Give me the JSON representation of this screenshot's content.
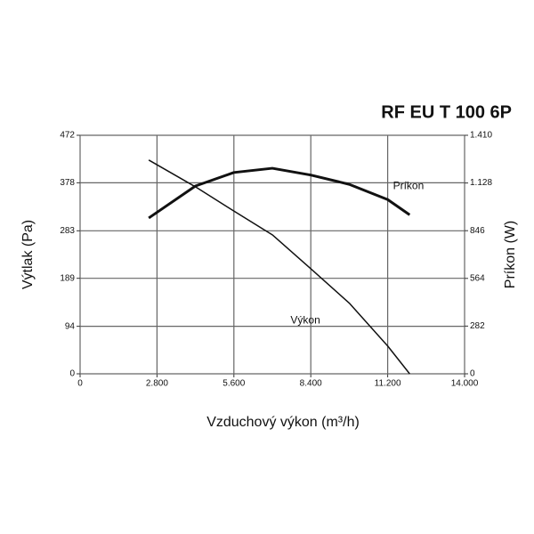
{
  "chart_data": {
    "type": "line",
    "title": "RF EU T 100 6P",
    "x_label": "Vzduchový výkon (m³/h)",
    "y_label": "Výtlak (Pa)",
    "y2_label": "Príkon (W)",
    "x": [
      2500,
      4200,
      5600,
      7000,
      8400,
      9800,
      11200,
      12000
    ],
    "series": [
      {
        "name": "Výkon",
        "color": "#111111",
        "values": [
          423,
          370,
          322,
          275,
          208,
          140,
          55,
          0
        ]
      },
      {
        "name": "Príkon",
        "color": "#111111",
        "axis": "y2",
        "values": [
          921,
          1110,
          1190,
          1215,
          1175,
          1120,
          1030,
          940
        ]
      }
    ],
    "xlim": [
      0,
      14000
    ],
    "xticks": [
      0,
      {
        "value": 2800,
        "label": "2.800"
      },
      {
        "value": 5600,
        "label": "5.600"
      },
      {
        "value": 8400,
        "label": "8.400"
      },
      {
        "value": 11200,
        "label": "11.200"
      },
      {
        "value": 14000,
        "label": "14.000"
      }
    ],
    "ylim": [
      0,
      472
    ],
    "yticks": [
      0,
      94,
      189,
      283,
      378,
      472
    ],
    "y2lim": [
      0,
      1410
    ],
    "y2ticks": [
      0,
      282,
      564,
      846,
      {
        "value": 1128,
        "label": "1.128"
      },
      {
        "value": 1410,
        "label": "1.410"
      }
    ],
    "grid": true
  }
}
